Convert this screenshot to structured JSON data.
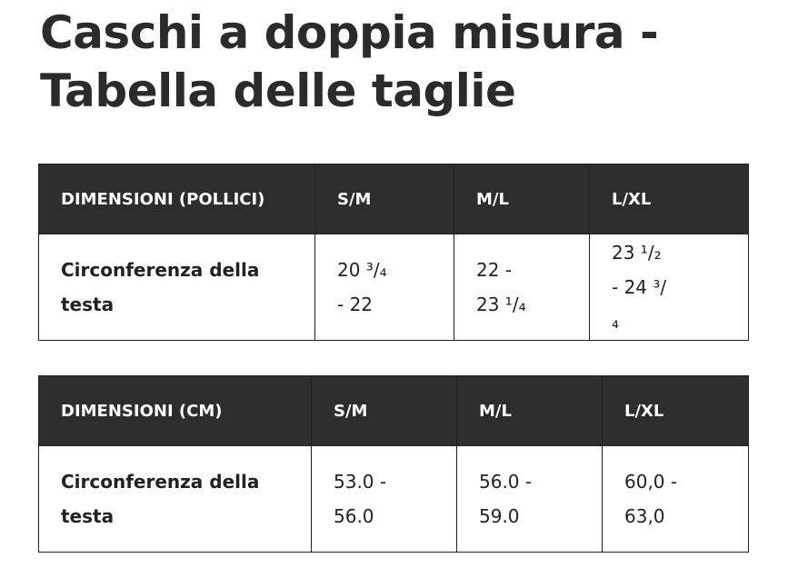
{
  "header": {
    "title": "Caschi a doppia misura - Tabella delle taglie"
  },
  "tables": [
    {
      "header": [
        "DIMENSIONI (POLLICI)",
        "S/M",
        "M/L",
        "L/XL"
      ],
      "rows": [
        [
          "Circonferenza della testa",
          "20 ³/₄ - 22",
          "22 - 23 ¹/₄",
          "23 ¹/₂ - 24 ³/₄"
        ]
      ]
    },
    {
      "header": [
        "DIMENSIONI (CM)",
        "S/M",
        "M/L",
        "L/XL"
      ],
      "rows": [
        [
          "Circonferenza della testa",
          "53.0 - 56.0",
          "56.0 - 59.0",
          "60,0 - 63,0"
        ]
      ]
    }
  ]
}
